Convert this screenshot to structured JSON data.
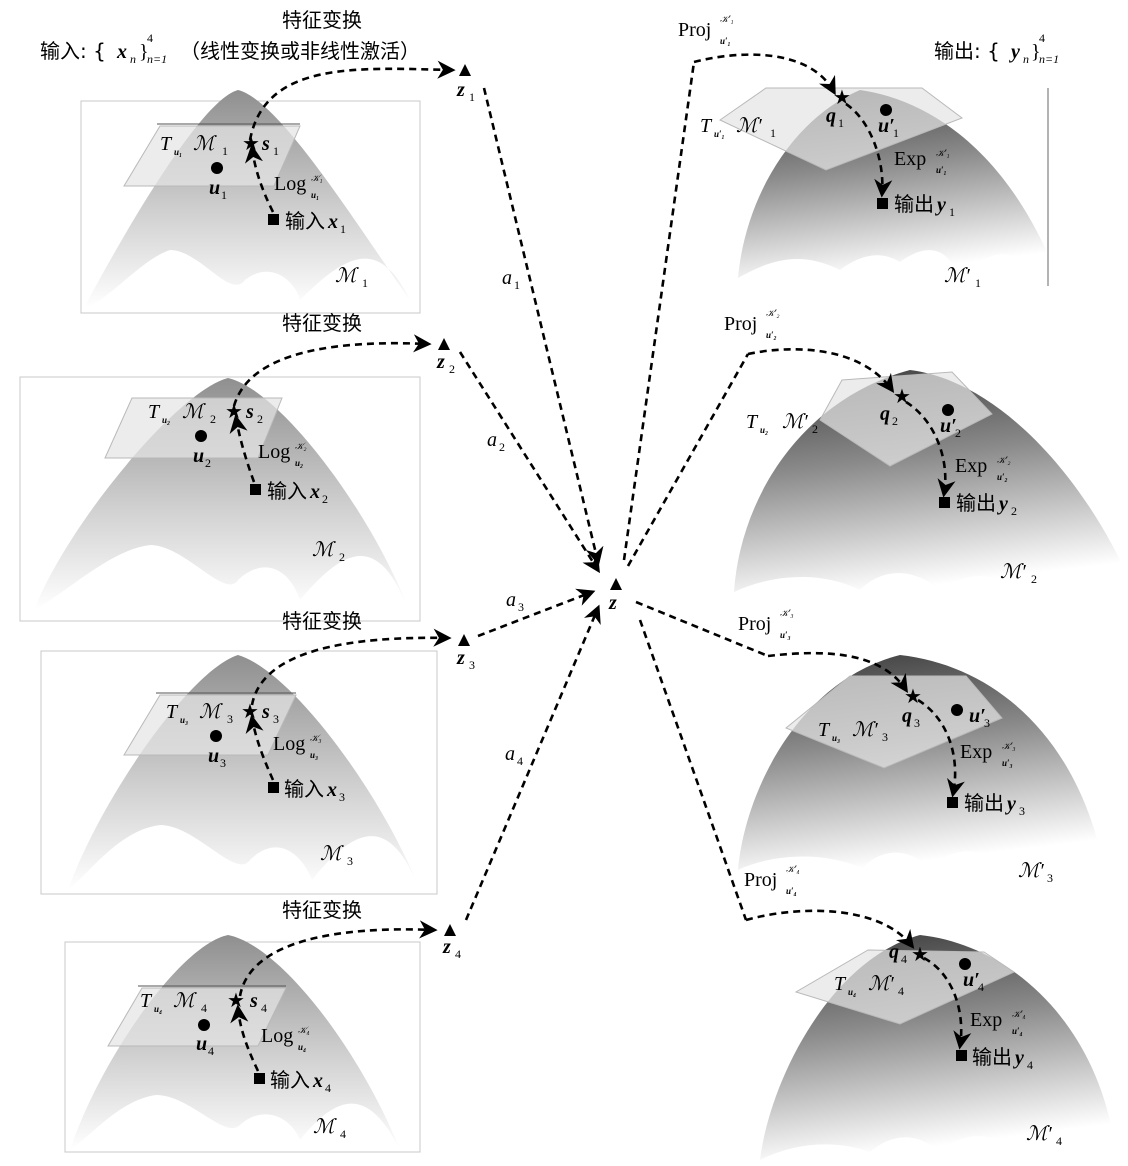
{
  "inputs_header": {
    "prefix": "输入: {",
    "var": "x",
    "sub": "n",
    "sup": "4",
    "range": "n=1",
    "note": "（线性变换或非线性激活）"
  },
  "outputs_header": {
    "prefix": "输出: {",
    "var": "y",
    "sub": "n",
    "sup": "4",
    "range": "n=1"
  },
  "feature_transform_label": "特征变换",
  "input_word": "输入",
  "output_word": "输出",
  "log_word": "Log",
  "exp_word": "Exp",
  "proj_word": "Proj",
  "center_node": "z",
  "inputs": [
    {
      "idx": "1",
      "tangent_t": "T",
      "tangent_u": "u₁",
      "manifold": "ℳ",
      "sub": "1",
      "star": "s",
      "origin": "u",
      "input_var": "x",
      "log_sup": "𝒦₁",
      "log_sub": "u₁",
      "z": "z",
      "weight": "a",
      "weight_sub": "1"
    },
    {
      "idx": "2",
      "tangent_t": "T",
      "tangent_u": "u₂",
      "manifold": "ℳ",
      "sub": "2",
      "star": "s",
      "origin": "u",
      "input_var": "x",
      "log_sup": "𝒦₂",
      "log_sub": "u₂",
      "z": "z",
      "weight": "a",
      "weight_sub": "2"
    },
    {
      "idx": "3",
      "tangent_t": "T",
      "tangent_u": "u₃",
      "manifold": "ℳ",
      "sub": "3",
      "star": "s",
      "origin": "u",
      "input_var": "x",
      "log_sup": "𝒦₃",
      "log_sub": "u₃",
      "z": "z",
      "weight": "a",
      "weight_sub": "3"
    },
    {
      "idx": "4",
      "tangent_t": "T",
      "tangent_u": "u₄",
      "manifold": "ℳ",
      "sub": "4",
      "star": "s",
      "origin": "u",
      "input_var": "x",
      "log_sup": "𝒦₄",
      "log_sub": "u₄",
      "z": "z",
      "weight": "a",
      "weight_sub": "4"
    }
  ],
  "outputs": [
    {
      "idx": "1",
      "tangent_t": "T",
      "tangent_u": "u′₁",
      "manifold": "ℳ′",
      "sub": "1",
      "star": "q",
      "origin": "u′",
      "output_var": "y",
      "exp_sup": "𝒦′₁",
      "exp_sub": "u′₁",
      "proj_sup": "𝒦′₁",
      "proj_sub": "u′₁"
    },
    {
      "idx": "2",
      "tangent_t": "T",
      "tangent_u": "u₂",
      "manifold": "ℳ′",
      "sub": "2",
      "star": "q",
      "origin": "u′",
      "output_var": "y",
      "exp_sup": "𝒦′₂",
      "exp_sub": "u′₂",
      "proj_sup": "𝒦′₂",
      "proj_sub": "u′₂"
    },
    {
      "idx": "3",
      "tangent_t": "T",
      "tangent_u": "u₃",
      "manifold": "ℳ′",
      "sub": "3",
      "star": "q",
      "origin": "u′",
      "output_var": "y",
      "exp_sup": "𝒦′₃",
      "exp_sub": "u′₃",
      "proj_sup": "𝒦′₃",
      "proj_sub": "u′₃"
    },
    {
      "idx": "4",
      "tangent_t": "T",
      "tangent_u": "u₄",
      "manifold": "ℳ′",
      "sub": "4",
      "star": "q",
      "origin": "u′",
      "output_var": "y",
      "exp_sup": "𝒦′₄",
      "exp_sub": "u′₄",
      "proj_sup": "𝒦′₄",
      "proj_sub": "u′₄"
    }
  ]
}
